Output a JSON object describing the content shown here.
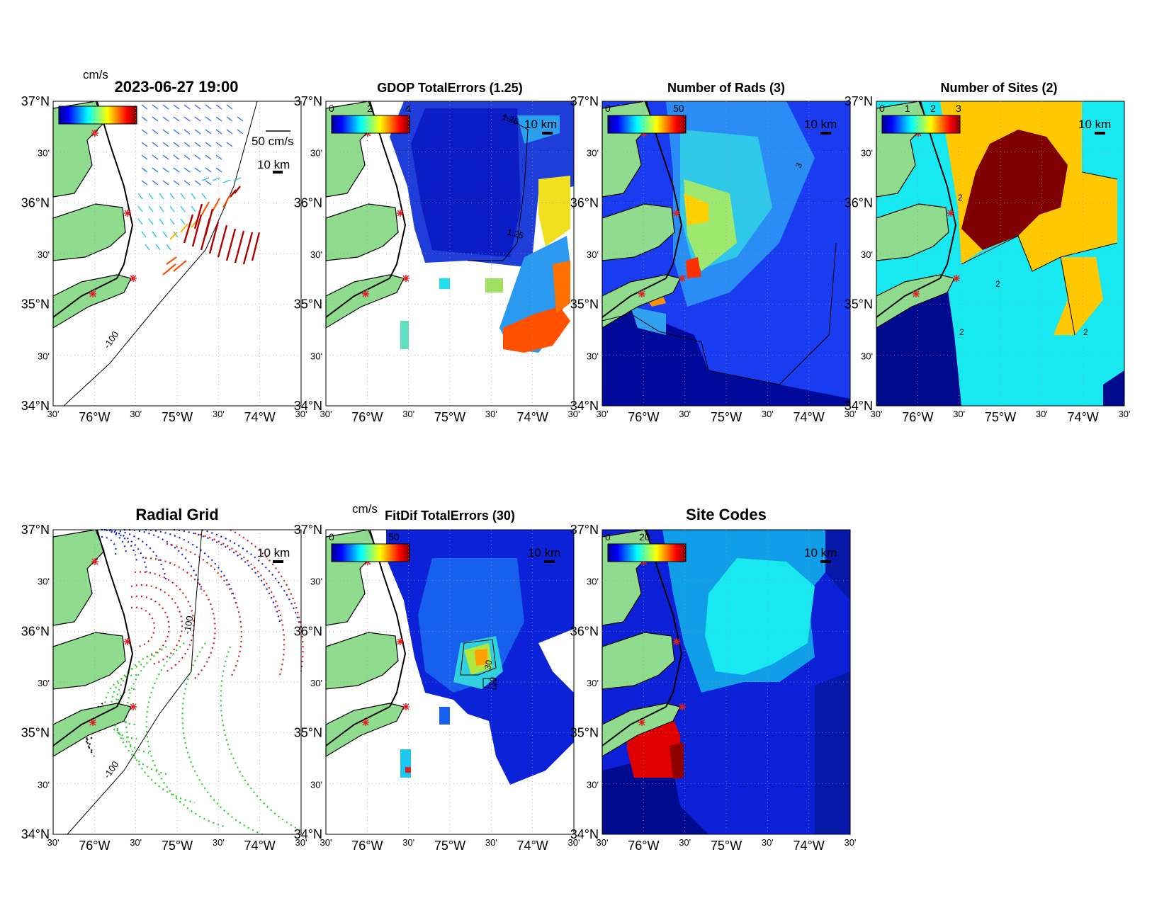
{
  "figure": {
    "lat_labels": [
      "37°N",
      "30'",
      "36°N",
      "30'",
      "35°N",
      "30'",
      "34°N"
    ],
    "lon_labels": [
      "30'",
      "76°W",
      "30'",
      "75°W",
      "30'",
      "74°W",
      "30'"
    ],
    "scale_label": "10 km",
    "colors": {
      "land": "#8fdc8f",
      "site_marker": "#e02020",
      "deep_blue": "#00008f",
      "mid_blue": "#1040e0",
      "light_blue": "#109ee8",
      "cyan": "#18e8f0",
      "orange": "#ffc800",
      "dark_red": "#800000",
      "red": "#e00000"
    }
  },
  "panels": [
    {
      "id": "total-currents",
      "title": "2023-06-27 19:00",
      "colorbar_unit": "cm/s",
      "colorbar_ticks": [],
      "vector_scale_label": "50 cm/s",
      "contour_label": "-100"
    },
    {
      "id": "gdop-total-errors",
      "title": "GDOP TotalErrors (1.25)",
      "colorbar_ticks": [
        "0",
        "2",
        "4"
      ],
      "contour_labels": [
        "1.25",
        "1.25"
      ]
    },
    {
      "id": "number-of-rads",
      "title": "Number of Rads (3)",
      "colorbar_ticks": [
        "0",
        "50"
      ],
      "contour_labels": [
        "3"
      ]
    },
    {
      "id": "number-of-sites",
      "title": "Number of Sites (2)",
      "colorbar_ticks": [
        "0",
        "1",
        "2",
        "3"
      ],
      "contour_labels": [
        "2",
        "2",
        "2",
        "2"
      ]
    },
    {
      "id": "radial-grid",
      "title": "Radial Grid",
      "colorbar_ticks": [],
      "contour_labels": [
        "-100",
        "-100"
      ]
    },
    {
      "id": "fitdif-total-errors",
      "title": "FitDif TotalErrors (30)",
      "colorbar_unit": "cm/s",
      "colorbar_ticks": [
        "0",
        "50"
      ],
      "contour_labels": [
        "30",
        "30"
      ]
    },
    {
      "id": "site-codes",
      "title": "Site Codes",
      "colorbar_ticks": [
        "0",
        "20"
      ]
    }
  ]
}
